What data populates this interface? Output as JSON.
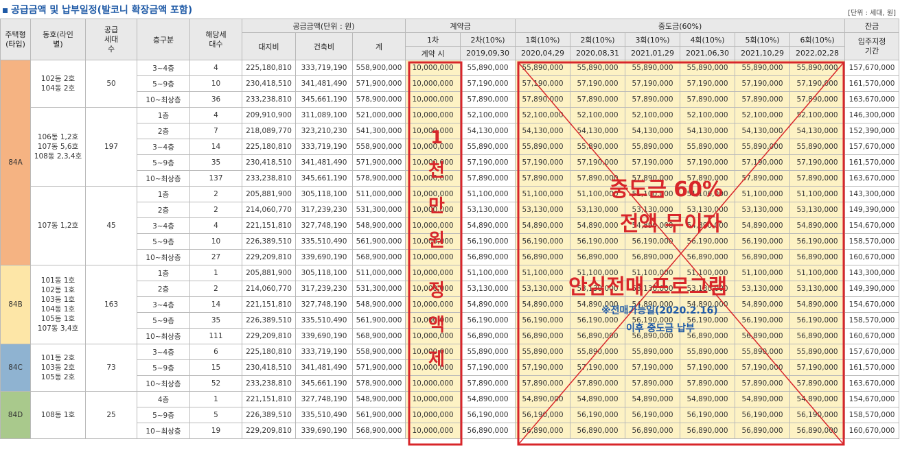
{
  "title": "공급금액 및 납부일정(발코니 확장금액 포함)",
  "unit_note": "[단위 : 세대, 원]",
  "headers": {
    "type": "주택형(타입)",
    "dongho": "동호(라인별)",
    "supply_units": "공급세대수",
    "floor": "층구분",
    "count": "해당세대수",
    "price_group": "공급금액(단위 : 원)",
    "land": "대지비",
    "building": "건축비",
    "total": "계",
    "deposit_group": "계약금",
    "interim_group": "중도금(60%)",
    "balance_group": "잔금",
    "dep1": "1차",
    "dep2": "2차(10%)",
    "dep1_date": "계약 시",
    "dep2_date": "2019,09,30",
    "int_labels": [
      "1회(10%)",
      "2회(10%)",
      "3회(10%)",
      "4회(10%)",
      "5회(10%)",
      "6회(10%)"
    ],
    "int_dates": [
      "2020,04,29",
      "2020,08,31",
      "2021,01,29",
      "2021,06,30",
      "2021,10,29",
      "2022,02,28"
    ],
    "balance_label": "입주지정기간"
  },
  "groups": [
    {
      "type": "84A",
      "color": "#f5b382",
      "blocks": [
        {
          "dongho": "102동 2호\n104동 2호",
          "supply": "50",
          "rows": [
            [
              "3~4층",
              "4",
              "225,180,810",
              "333,719,190",
              "558,900,000",
              "10,000,000",
              "55,890,000",
              "55,890,000",
              "157,670,000"
            ],
            [
              "5~9층",
              "10",
              "230,418,510",
              "341,481,490",
              "571,900,000",
              "10,000,000",
              "57,190,000",
              "57,190,000",
              "161,570,000"
            ],
            [
              "10~최상층",
              "36",
              "233,238,810",
              "345,661,190",
              "578,900,000",
              "10,000,000",
              "57,890,000",
              "57,890,000",
              "163,670,000"
            ]
          ]
        },
        {
          "dongho": "106동 1,2호\n107동 5,6호\n108동 2,3,4호",
          "supply": "197",
          "rows": [
            [
              "1층",
              "4",
              "209,910,900",
              "311,089,100",
              "521,000,000",
              "10,000,000",
              "52,100,000",
              "52,100,000",
              "146,300,000"
            ],
            [
              "2층",
              "7",
              "218,089,770",
              "323,210,230",
              "541,300,000",
              "10,000,000",
              "54,130,000",
              "54,130,000",
              "152,390,000"
            ],
            [
              "3~4층",
              "14",
              "225,180,810",
              "333,719,190",
              "558,900,000",
              "10,000,000",
              "55,890,000",
              "55,890,000",
              "157,670,000"
            ],
            [
              "5~9층",
              "35",
              "230,418,510",
              "341,481,490",
              "571,900,000",
              "10,000,000",
              "57,190,000",
              "57,190,000",
              "161,570,000"
            ],
            [
              "10~최상층",
              "137",
              "233,238,810",
              "345,661,190",
              "578,900,000",
              "10,000,000",
              "57,890,000",
              "57,890,000",
              "163,670,000"
            ]
          ]
        },
        {
          "dongho": "107동 1,2호",
          "supply": "45",
          "rows": [
            [
              "1층",
              "2",
              "205,881,900",
              "305,118,100",
              "511,000,000",
              "10,000,000",
              "51,100,000",
              "51,100,000",
              "143,300,000"
            ],
            [
              "2층",
              "2",
              "214,060,770",
              "317,239,230",
              "531,300,000",
              "10,000,000",
              "53,130,000",
              "53,130,000",
              "149,390,000"
            ],
            [
              "3~4층",
              "4",
              "221,151,810",
              "327,748,190",
              "548,900,000",
              "10,000,000",
              "54,890,000",
              "54,890,000",
              "154,670,000"
            ],
            [
              "5~9층",
              "10",
              "226,389,510",
              "335,510,490",
              "561,900,000",
              "10,000,000",
              "56,190,000",
              "56,190,000",
              "158,570,000"
            ],
            [
              "10~최상층",
              "27",
              "229,209,810",
              "339,690,190",
              "568,900,000",
              "10,000,000",
              "56,890,000",
              "56,890,000",
              "160,670,000"
            ]
          ]
        }
      ]
    },
    {
      "type": "84B",
      "color": "#fde6a7",
      "blocks": [
        {
          "dongho": "101동 1호\n102동 1호\n103동 1호\n104동 1호\n105동 1호\n107동 3,4호",
          "supply": "163",
          "rows": [
            [
              "1층",
              "1",
              "205,881,900",
              "305,118,100",
              "511,000,000",
              "10,000,000",
              "51,100,000",
              "51,100,000",
              "143,300,000"
            ],
            [
              "2층",
              "2",
              "214,060,770",
              "317,239,230",
              "531,300,000",
              "10,000,000",
              "53,130,000",
              "53,130,000",
              "149,390,000"
            ],
            [
              "3~4층",
              "14",
              "221,151,810",
              "327,748,190",
              "548,900,000",
              "10,000,000",
              "54,890,000",
              "54,890,000",
              "154,670,000"
            ],
            [
              "5~9층",
              "35",
              "226,389,510",
              "335,510,490",
              "561,900,000",
              "10,000,000",
              "56,190,000",
              "56,190,000",
              "158,570,000"
            ],
            [
              "10~최상층",
              "111",
              "229,209,810",
              "339,690,190",
              "568,900,000",
              "10,000,000",
              "56,890,000",
              "56,890,000",
              "160,670,000"
            ]
          ]
        }
      ]
    },
    {
      "type": "84C",
      "color": "#8fb3d1",
      "blocks": [
        {
          "dongho": "101동 2호\n103동 2호\n105동 2호",
          "supply": "73",
          "rows": [
            [
              "3~4층",
              "6",
              "225,180,810",
              "333,719,190",
              "558,900,000",
              "10,000,000",
              "55,890,000",
              "55,890,000",
              "157,670,000"
            ],
            [
              "5~9층",
              "15",
              "230,418,510",
              "341,481,490",
              "571,900,000",
              "10,000,000",
              "57,190,000",
              "57,190,000",
              "161,570,000"
            ],
            [
              "10~최상층",
              "52",
              "233,238,810",
              "345,661,190",
              "578,900,000",
              "10,000,000",
              "57,890,000",
              "57,890,000",
              "163,670,000"
            ]
          ]
        }
      ]
    },
    {
      "type": "84D",
      "color": "#a9c98c",
      "blocks": [
        {
          "dongho": "108동 1호",
          "supply": "25",
          "rows": [
            [
              "4층",
              "1",
              "221,151,810",
              "327,748,190",
              "548,900,000",
              "10,000,000",
              "54,890,000",
              "54,890,000",
              "154,670,000"
            ],
            [
              "5~9층",
              "5",
              "226,389,510",
              "335,510,490",
              "561,900,000",
              "10,000,000",
              "56,190,000",
              "56,190,000",
              "158,570,000"
            ],
            [
              "10~최상층",
              "19",
              "229,209,810",
              "339,690,190",
              "568,900,000",
              "10,000,000",
              "56,890,000",
              "56,890,000",
              "160,670,000"
            ]
          ]
        }
      ]
    }
  ],
  "overlay": {
    "vertical_chars": [
      "1",
      "천",
      "만",
      "원",
      "정",
      "액",
      "제"
    ],
    "interim_free": "중도금 60%",
    "interim_free2": "전액 무이자",
    "resale_program": "안심전매 프로그램",
    "resale_note1": "※전매가능일(2020.2.16)",
    "resale_note2": "이후 중도금 납부",
    "accent_color": "#d8262a",
    "note_color": "#1f5aa6"
  }
}
